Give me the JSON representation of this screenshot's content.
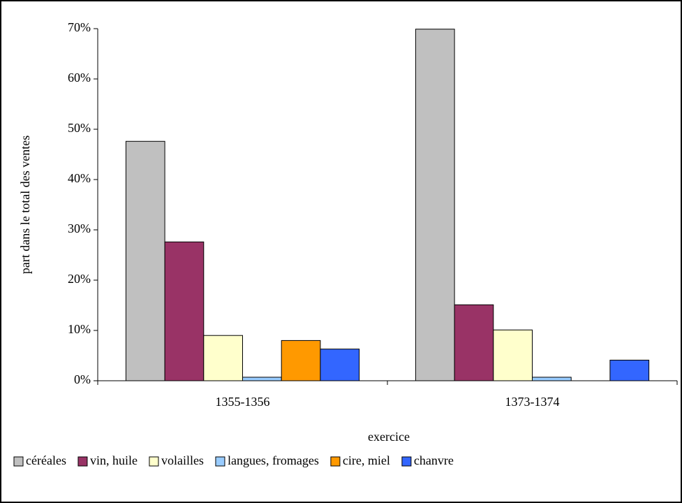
{
  "chart_data": {
    "type": "bar",
    "categories": [
      "1355-1356",
      "1373-1374"
    ],
    "xlabel": "exercice",
    "ylabel": "part dans le total des ventes",
    "series": [
      {
        "name": "céréales",
        "color": "#c0c0c0",
        "values": [
          47.6,
          69.9
        ]
      },
      {
        "name": "vin, huile",
        "color": "#993366",
        "values": [
          27.6,
          15.1
        ]
      },
      {
        "name": "volailles",
        "color": "#ffffcc",
        "values": [
          9.0,
          10.1
        ]
      },
      {
        "name": "langues, fromages",
        "color": "#99ccff",
        "values": [
          0.7,
          0.7
        ]
      },
      {
        "name": "cire, miel",
        "color": "#ff9900",
        "values": [
          8.0,
          0
        ]
      },
      {
        "name": "chanvre",
        "color": "#3366ff",
        "values": [
          6.3,
          4.1
        ]
      }
    ],
    "ylim": [
      0,
      70
    ],
    "yticks": [
      {
        "value": 0,
        "label": "0%"
      },
      {
        "value": 10,
        "label": "10%"
      },
      {
        "value": 20,
        "label": "20%"
      },
      {
        "value": 30,
        "label": "30%"
      },
      {
        "value": 40,
        "label": "40%"
      },
      {
        "value": 50,
        "label": "50%"
      },
      {
        "value": 60,
        "label": "60%"
      },
      {
        "value": 70,
        "label": "70%"
      }
    ],
    "grid": false,
    "legend": "bottom"
  }
}
